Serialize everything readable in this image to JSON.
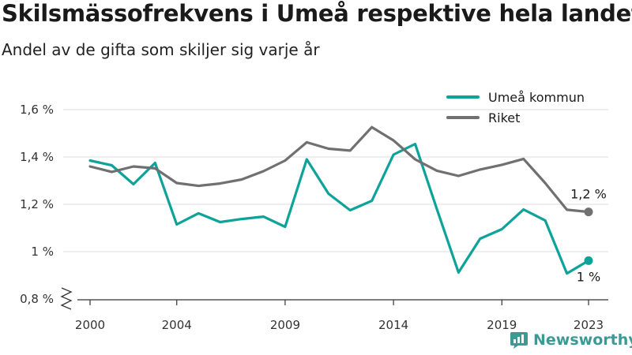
{
  "title": "Skilsmässofrekvens i Umeå respektive hela landet",
  "subtitle": "Andel av de gifta som skiljer sig varje år",
  "brand": "Newsworthy",
  "colors": {
    "umea": "#0ea398",
    "riket": "#707070",
    "grid": "#dedede",
    "axis": "#333333"
  },
  "chart_data": {
    "type": "line",
    "x": [
      2000,
      2001,
      2002,
      2003,
      2004,
      2005,
      2006,
      2007,
      2008,
      2009,
      2010,
      2011,
      2012,
      2013,
      2014,
      2015,
      2016,
      2017,
      2018,
      2019,
      2020,
      2021,
      2022,
      2023
    ],
    "series": [
      {
        "name": "Umeå kommun",
        "color": "#0ea398",
        "values": [
          1.385,
          1.365,
          1.285,
          1.375,
          1.115,
          1.162,
          1.125,
          1.138,
          1.148,
          1.105,
          1.39,
          1.245,
          1.175,
          1.215,
          1.41,
          1.455,
          1.18,
          0.912,
          1.055,
          1.095,
          1.178,
          1.132,
          0.908,
          0.962
        ],
        "end_label": "1 %"
      },
      {
        "name": "Riket",
        "color": "#707070",
        "values": [
          1.36,
          1.337,
          1.36,
          1.352,
          1.29,
          1.278,
          1.288,
          1.305,
          1.34,
          1.385,
          1.462,
          1.435,
          1.427,
          1.526,
          1.47,
          1.39,
          1.342,
          1.32,
          1.347,
          1.367,
          1.392,
          1.29,
          1.177,
          1.168
        ],
        "end_label": "1,2 %"
      }
    ],
    "xticks": [
      "2000",
      "2004",
      "2009",
      "2014",
      "2019",
      "2023"
    ],
    "xtick_values": [
      2000,
      2004,
      2009,
      2014,
      2019,
      2023
    ],
    "yticks": [
      "0,8 %",
      "1 %",
      "1,2 %",
      "1,4 %",
      "1,6 %"
    ],
    "ytick_values": [
      0.8,
      1.0,
      1.2,
      1.4,
      1.6
    ],
    "ylim": [
      0.8,
      1.6
    ],
    "xlim": [
      2000,
      2023
    ],
    "grid": "horizontal",
    "legend": "top-right",
    "title": "Skilsmässofrekvens i Umeå respektive hela landet",
    "subtitle": "Andel av de gifta som skiljer sig varje år",
    "xlabel": "",
    "ylabel": ""
  }
}
